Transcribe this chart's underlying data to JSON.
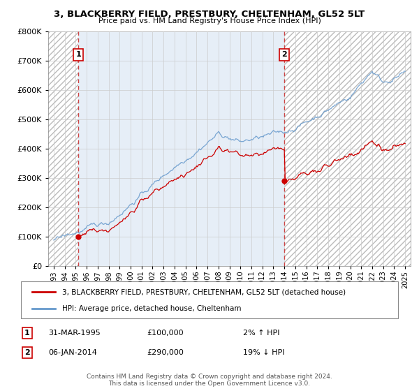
{
  "title": "3, BLACKBERRY FIELD, PRESTBURY, CHELTENHAM, GL52 5LT",
  "subtitle": "Price paid vs. HM Land Registry's House Price Index (HPI)",
  "legend_line1": "3, BLACKBERRY FIELD, PRESTBURY, CHELTENHAM, GL52 5LT (detached house)",
  "legend_line2": "HPI: Average price, detached house, Cheltenham",
  "annotation1_label": "1",
  "annotation1_date": "31-MAR-1995",
  "annotation1_price": "£100,000",
  "annotation1_hpi": "2% ↑ HPI",
  "annotation2_label": "2",
  "annotation2_date": "06-JAN-2014",
  "annotation2_price": "£290,000",
  "annotation2_hpi": "19% ↓ HPI",
  "footer": "Contains HM Land Registry data © Crown copyright and database right 2024.\nThis data is licensed under the Open Government Licence v3.0.",
  "sale1_year": 1995.25,
  "sale1_price": 100000,
  "sale2_year": 2014.02,
  "sale2_price": 290000,
  "price_line_color": "#cc0000",
  "hpi_line_color": "#6699cc",
  "dashed_line_color": "#cc4444",
  "background_color": "#ffffff",
  "ylim": [
    0,
    800000
  ],
  "xlim_start": 1992.5,
  "xlim_end": 2025.5,
  "num_months": 397,
  "hpi_seed": 42,
  "prop_seed": 77
}
